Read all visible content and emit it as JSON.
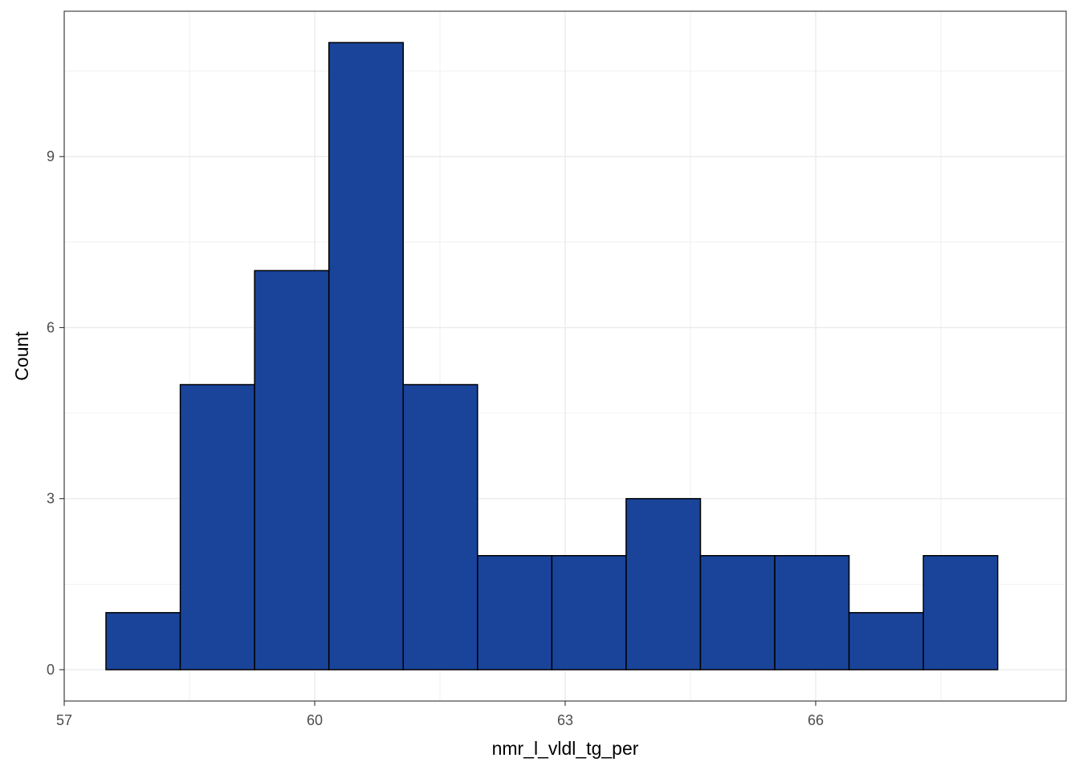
{
  "chart_data": {
    "type": "bar",
    "subtype": "histogram",
    "title": "",
    "xlabel": "nmr_l_vldl_tg_per",
    "ylabel": "Count",
    "bin_edges": [
      57.5,
      58.39,
      59.28,
      60.17,
      61.06,
      61.95,
      62.84,
      63.73,
      64.62,
      65.51,
      66.4,
      67.29,
      68.18
    ],
    "values": [
      1,
      5,
      7,
      11,
      5,
      2,
      2,
      3,
      2,
      2,
      1,
      2
    ],
    "xlim": [
      57.0,
      69.0
    ],
    "ylim": [
      -0.55,
      11.55
    ],
    "x_ticks": [
      57,
      60,
      63,
      66
    ],
    "x_tick_labels": [
      "57",
      "60",
      "63",
      "66"
    ],
    "y_ticks": [
      0,
      3,
      6,
      9
    ],
    "y_tick_labels": [
      "0",
      "3",
      "6",
      "9"
    ],
    "grid": true,
    "colors": {
      "fill": "#19449a",
      "outline": "#000000",
      "grid": "#ebebeb",
      "panel_border": "#333333",
      "axis_text": "#4d4d4d"
    }
  }
}
